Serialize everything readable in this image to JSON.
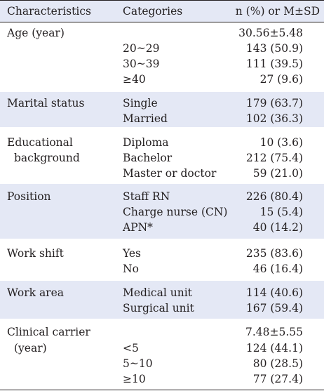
{
  "header": {
    "characteristics": "Characteristics",
    "categories": "Categories",
    "value": "n (%) or M±SD"
  },
  "groups": [
    {
      "label": "Age (year)",
      "rows": [
        {
          "category": "",
          "value": "30.56±5.48"
        },
        {
          "category": "20~29",
          "value": "143 (50.9)"
        },
        {
          "category": "30~39",
          "value": "111 (39.5)"
        },
        {
          "category": "≥40",
          "value": "27 (9.6)"
        }
      ]
    },
    {
      "label": "Marital status",
      "rows": [
        {
          "category": "Single",
          "value": "179 (63.7)"
        },
        {
          "category": "Married",
          "value": "102 (36.3)"
        }
      ]
    },
    {
      "label_lines": [
        "Educational",
        "background"
      ],
      "rows": [
        {
          "category": "Diploma",
          "value": "10 (3.6)"
        },
        {
          "category": "Bachelor",
          "value": "212 (75.4)"
        },
        {
          "category": "Master or doctor",
          "value": "59 (21.0)"
        }
      ]
    },
    {
      "label": "Position",
      "rows": [
        {
          "category": "Staff RN",
          "value": "226 (80.4)"
        },
        {
          "category": "Charge nurse (CN)",
          "value": "15 (5.4)"
        },
        {
          "category": "APN*",
          "value": "40 (14.2)"
        }
      ]
    },
    {
      "label": "Work shift",
      "rows": [
        {
          "category": "Yes",
          "value": "235 (83.6)"
        },
        {
          "category": "No",
          "value": "46 (16.4)"
        }
      ]
    },
    {
      "label": "Work area",
      "rows": [
        {
          "category": "Medical unit",
          "value": "114 (40.6)"
        },
        {
          "category": "Surgical unit",
          "value": "167 (59.4)"
        }
      ]
    },
    {
      "label_lines": [
        "Clinical carrier",
        "(year)"
      ],
      "rows": [
        {
          "category": "",
          "value": "7.48±5.55"
        },
        {
          "category": "<5",
          "value": "124 (44.1)"
        },
        {
          "category": "5~10",
          "value": "80 (28.5)"
        },
        {
          "category": "≥10",
          "value": "77 (27.4)"
        }
      ]
    }
  ],
  "colors": {
    "band": "#e4e8f5",
    "rule": "#231f20",
    "text": "#231f20"
  }
}
